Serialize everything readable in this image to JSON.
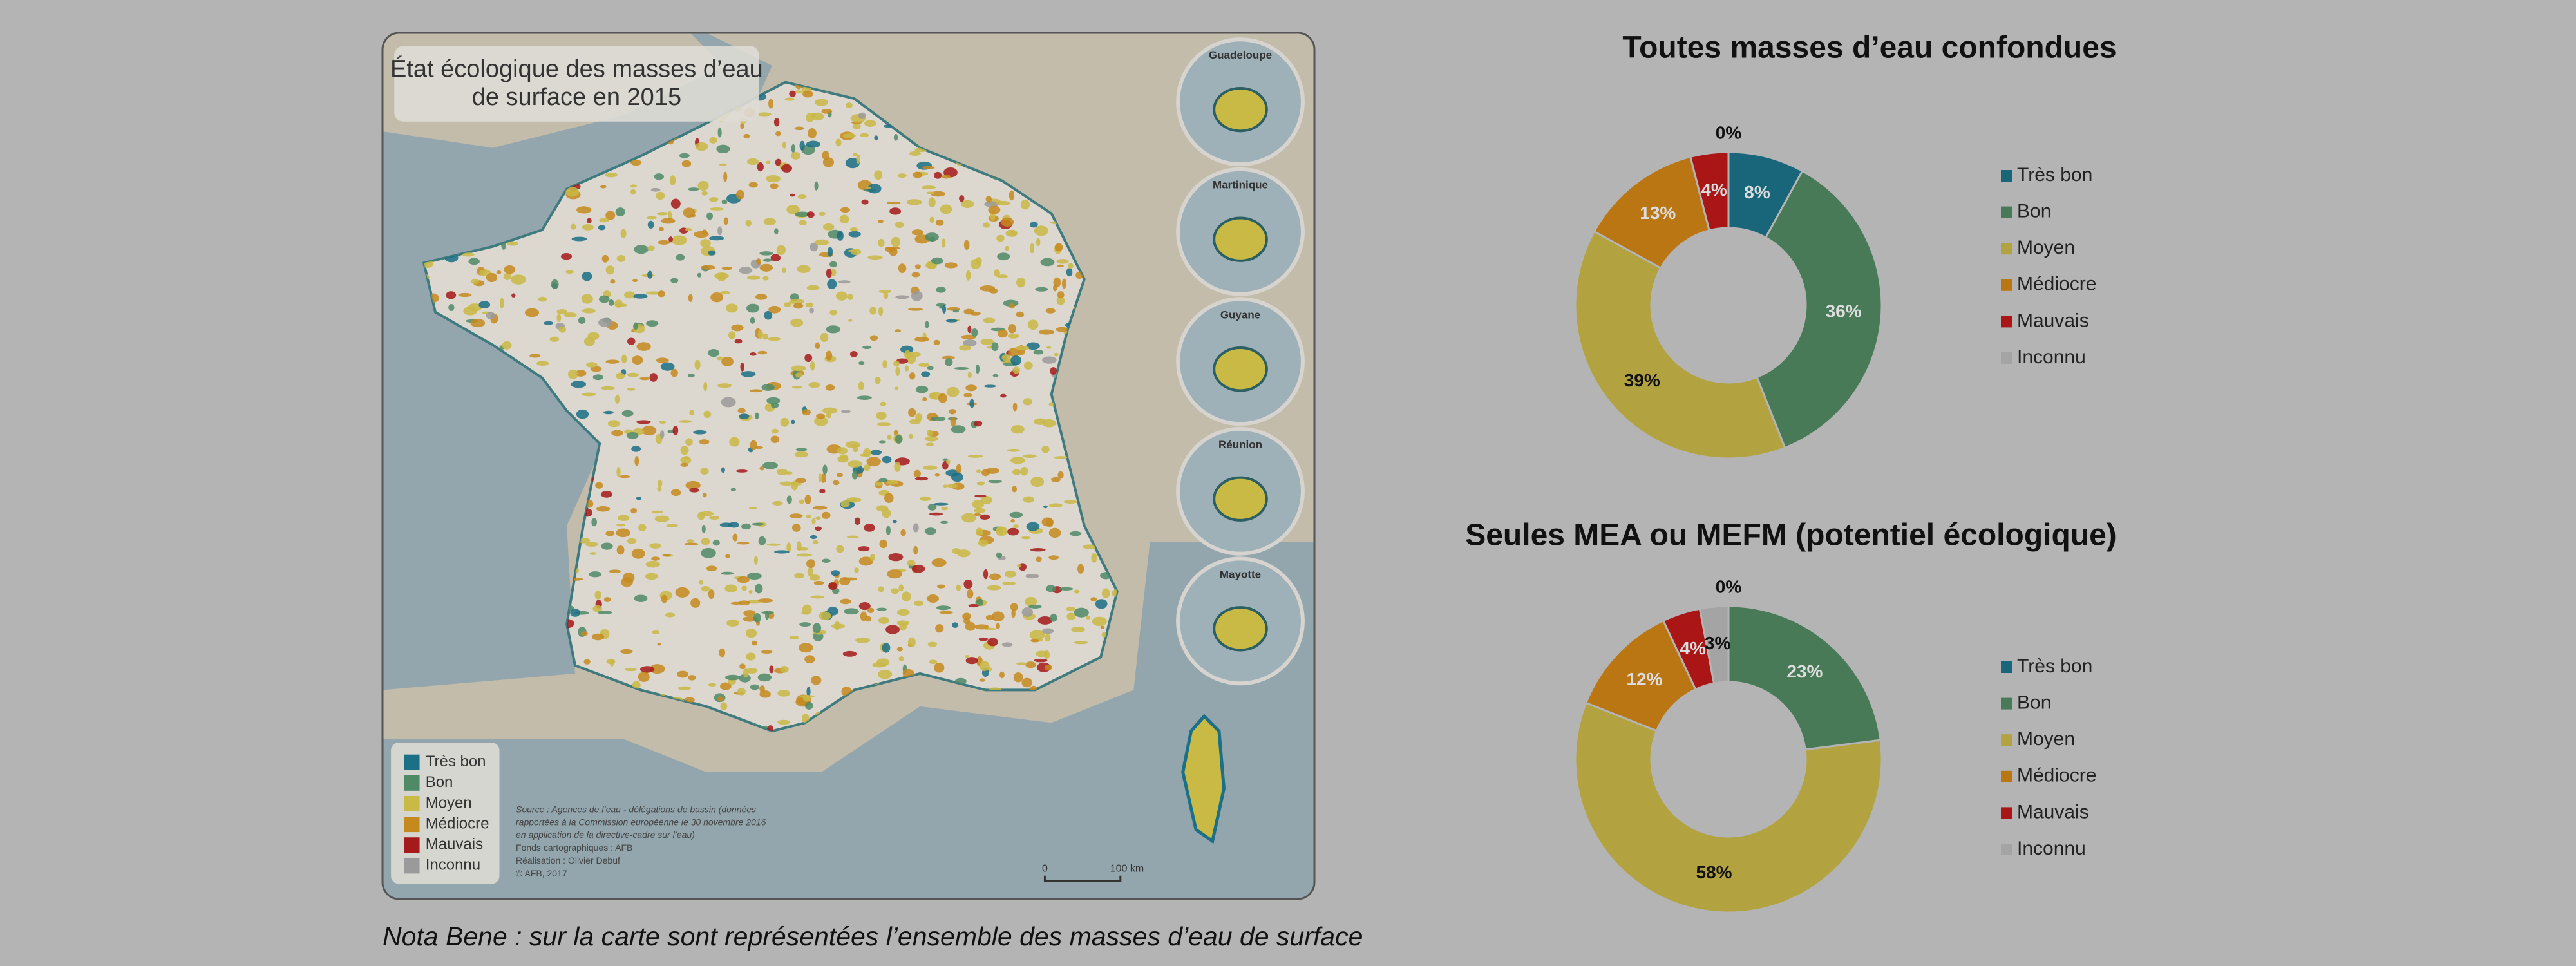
{
  "chart_data": [
    {
      "type": "pie",
      "donut": true,
      "title": "Toutes masses d’eau confondues",
      "categories": [
        "Très bon",
        "Bon",
        "Moyen",
        "Médiocre",
        "Mauvais",
        "Inconnu"
      ],
      "values": [
        8,
        36,
        39,
        13,
        4,
        0
      ],
      "value_labels": [
        "8%",
        "36%",
        "39%",
        "13%",
        "4%",
        "0%"
      ],
      "colors": [
        "#19667a",
        "#487a58",
        "#b2a340",
        "#bb7614",
        "#aa1616",
        "#a4a4a4"
      ],
      "label_colors": [
        "#dddddd",
        "#dddddd",
        "#111111",
        "#dddddd",
        "#dddddd",
        "#111111"
      ],
      "legend": "right"
    },
    {
      "type": "pie",
      "donut": true,
      "title": "Seules MEA ou MEFM (potentiel écologique)",
      "categories": [
        "Très bon",
        "Bon",
        "Moyen",
        "Médiocre",
        "Mauvais",
        "Inconnu"
      ],
      "values": [
        0,
        23,
        58,
        12,
        4,
        3
      ],
      "value_labels": [
        "0%",
        "23%",
        "58%",
        "12%",
        "4%",
        "3%"
      ],
      "colors": [
        "#19667a",
        "#487a58",
        "#b2a340",
        "#bb7614",
        "#aa1616",
        "#a4a4a4"
      ],
      "label_colors": [
        "#111111",
        "#dddddd",
        "#111111",
        "#dddddd",
        "#dddddd",
        "#111111"
      ],
      "legend": "right"
    }
  ],
  "map": {
    "title": [
      "État écologique des masses d’eau",
      "de surface en 2015"
    ],
    "insets": [
      "Guadeloupe",
      "Martinique",
      "Guyane",
      "Réunion",
      "Mayotte"
    ],
    "legend": [
      {
        "label": "Très bon",
        "color": "#1b6f86"
      },
      {
        "label": "Bon",
        "color": "#4f8a66"
      },
      {
        "label": "Moyen",
        "color": "#c9b945"
      },
      {
        "label": "Médiocre",
        "color": "#c58a1e"
      },
      {
        "label": "Mauvais",
        "color": "#a51a1a"
      },
      {
        "label": "Inconnu",
        "color": "#9a9a9a"
      }
    ],
    "source": [
      "Source : Agences de l’eau - délégations de bassin (données",
      "rapportées à la Commission européenne le 30 novembre 2016",
      "en application de la directive-cadre sur l’eau)",
      "Fonds cartographiques : AFB",
      "Réalisation : Olivier Debuf",
      "© AFB, 2017"
    ],
    "scale": [
      "0",
      "100 km"
    ]
  },
  "note": "Nota Bene : sur la carte sont représentées l’ensemble des masses d’eau de surface"
}
